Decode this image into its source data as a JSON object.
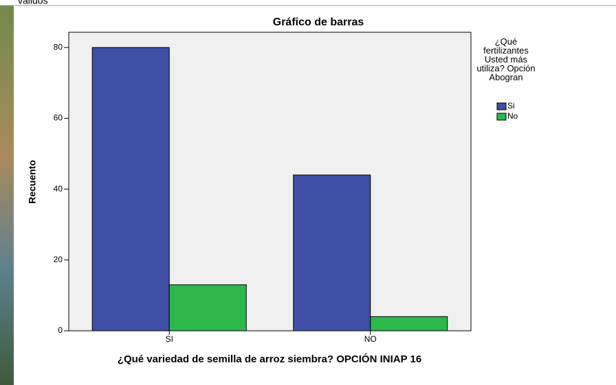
{
  "header_text": "válidos",
  "chart_data": {
    "type": "bar",
    "title": "Gráfico de barras",
    "categories": [
      "SI",
      "NO"
    ],
    "series": [
      {
        "name": "Si",
        "color": "#3e4fa5",
        "values": [
          80,
          44
        ]
      },
      {
        "name": "No",
        "color": "#2db84a",
        "values": [
          13,
          4
        ]
      }
    ],
    "ylim": [
      0,
      84.3
    ],
    "yticks": [
      0,
      20,
      40,
      60,
      80
    ],
    "ylabel": "Recuento",
    "xlabel": "¿Qué variedad de semilla de arroz siembra? OPCIÓN INIAP 16",
    "legend_title": "¿Qué fertilizantes Usted más utiliza? Opción Abogran",
    "legend": "right"
  }
}
